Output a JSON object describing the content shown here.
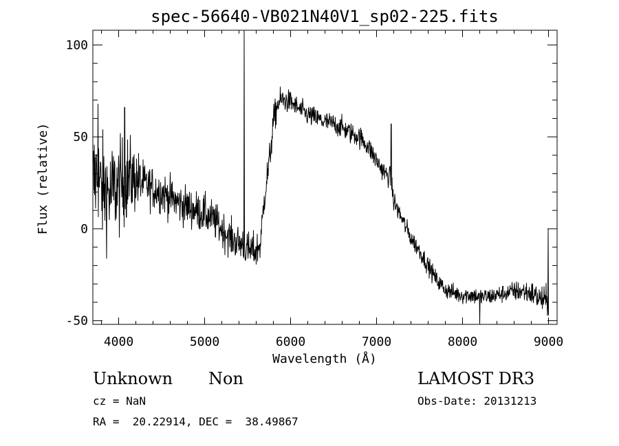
{
  "chart_data": {
    "type": "line",
    "title": "spec-56640-VB021N40V1_sp02-225.fits",
    "xlabel": "Wavelength (Å)",
    "ylabel": "Flux (relative)",
    "xlim": [
      3700,
      9100
    ],
    "ylim": [
      -52,
      108
    ],
    "xticks": [
      4000,
      5000,
      6000,
      7000,
      8000,
      9000
    ],
    "yticks": [
      -50,
      0,
      50,
      100
    ],
    "grid": false,
    "series": [
      {
        "anchors": [
          [
            3700,
            25
          ],
          [
            3750,
            30
          ],
          [
            3800,
            20
          ],
          [
            3850,
            22
          ],
          [
            3900,
            18
          ],
          [
            3950,
            22
          ],
          [
            4000,
            22
          ],
          [
            4100,
            28
          ],
          [
            4200,
            27
          ],
          [
            4300,
            24
          ],
          [
            4400,
            22
          ],
          [
            4500,
            20
          ],
          [
            4600,
            17
          ],
          [
            4700,
            14
          ],
          [
            4800,
            12
          ],
          [
            4900,
            10
          ],
          [
            5000,
            8
          ],
          [
            5100,
            5
          ],
          [
            5200,
            0
          ],
          [
            5300,
            -5
          ],
          [
            5400,
            -8
          ],
          [
            5450,
            -8
          ],
          [
            5500,
            -12
          ],
          [
            5600,
            -12
          ],
          [
            5650,
            -8
          ],
          [
            5700,
            20
          ],
          [
            5750,
            35
          ],
          [
            5800,
            58
          ],
          [
            5850,
            68
          ],
          [
            5900,
            70
          ],
          [
            6000,
            69
          ],
          [
            6100,
            65
          ],
          [
            6200,
            62
          ],
          [
            6300,
            60
          ],
          [
            6400,
            58
          ],
          [
            6500,
            57
          ],
          [
            6600,
            55
          ],
          [
            6700,
            52
          ],
          [
            6800,
            50
          ],
          [
            6900,
            45
          ],
          [
            7000,
            37
          ],
          [
            7100,
            30
          ],
          [
            7160,
            28
          ],
          [
            7200,
            15
          ],
          [
            7300,
            5
          ],
          [
            7400,
            -5
          ],
          [
            7500,
            -12
          ],
          [
            7600,
            -20
          ],
          [
            7700,
            -28
          ],
          [
            7800,
            -33
          ],
          [
            7900,
            -35
          ],
          [
            8000,
            -36
          ],
          [
            8100,
            -36
          ],
          [
            8200,
            -37
          ],
          [
            8300,
            -37
          ],
          [
            8400,
            -36
          ],
          [
            8500,
            -35
          ],
          [
            8600,
            -34
          ],
          [
            8700,
            -34
          ],
          [
            8800,
            -35
          ],
          [
            8900,
            -38
          ],
          [
            9000,
            -40
          ]
        ],
        "noise_amplitude": [
          [
            3700,
            16
          ],
          [
            4100,
            12
          ],
          [
            4300,
            6
          ],
          [
            5300,
            5
          ],
          [
            5700,
            5
          ],
          [
            6000,
            3
          ],
          [
            7000,
            3
          ],
          [
            7500,
            2.5
          ],
          [
            8500,
            2.5
          ],
          [
            9000,
            4
          ]
        ],
        "features": [
          {
            "x": 5460,
            "y": 108
          },
          {
            "x": 4070,
            "y": 66
          },
          {
            "x": 3760,
            "y": 68
          },
          {
            "x": 7170,
            "y": 57
          },
          {
            "x": 8200,
            "y": -52
          },
          {
            "x": 8995,
            "y": 0
          }
        ]
      }
    ]
  },
  "info": {
    "object_class": "Unknown",
    "subclass": "Non",
    "cz": "cz = NaN",
    "radec": "RA =  20.22914, DEC =  38.49867",
    "survey": "LAMOST DR3",
    "obs_date": "Obs-Date: 20131213"
  }
}
